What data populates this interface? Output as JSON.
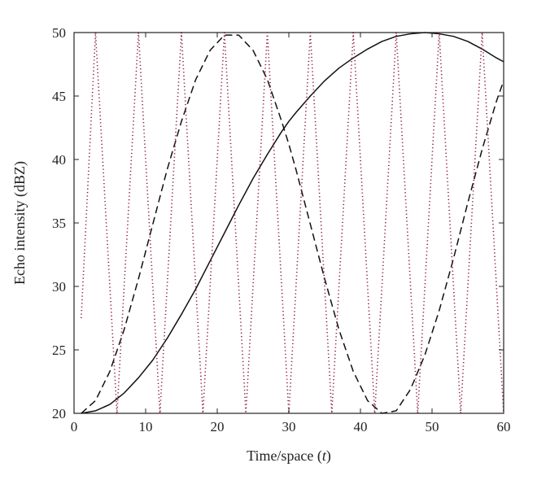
{
  "chart_data": {
    "type": "line",
    "xlabel": "Time/space",
    "xlabel_var": "t",
    "ylabel": "Echo intensity (dBZ)",
    "xlim": [
      0,
      60
    ],
    "ylim": [
      20,
      50
    ],
    "xticks": [
      0,
      10,
      20,
      30,
      40,
      50,
      60
    ],
    "yticks": [
      20,
      25,
      30,
      35,
      40,
      45,
      50
    ],
    "grid": false,
    "legend": "none",
    "series": [
      {
        "style": "solid",
        "color": "#111111",
        "x": [
          1,
          3,
          5,
          7,
          9,
          11,
          13,
          15,
          17,
          19,
          21,
          23,
          25,
          27,
          29,
          30,
          31,
          33,
          35,
          37,
          39,
          41,
          43,
          45,
          47,
          49,
          51,
          53,
          55,
          57,
          59,
          60
        ],
        "y": [
          20.0,
          20.2,
          20.7,
          21.6,
          22.8,
          24.2,
          25.9,
          27.8,
          29.8,
          32.0,
          34.2,
          36.4,
          38.5,
          40.4,
          42.2,
          43.0,
          43.7,
          45.0,
          46.2,
          47.2,
          48.0,
          48.7,
          49.3,
          49.7,
          49.9,
          50.0,
          49.9,
          49.7,
          49.3,
          48.7,
          48.0,
          47.7
        ]
      },
      {
        "style": "dashed",
        "color": "#111111",
        "x": [
          1,
          3,
          5,
          7,
          9,
          11,
          13,
          15,
          17,
          19,
          21,
          23,
          25,
          27,
          29,
          30,
          31,
          33,
          35,
          37,
          39,
          41,
          43,
          45,
          47,
          49,
          51,
          53,
          55,
          57,
          59,
          60
        ],
        "y": [
          20.0,
          21.0,
          23.3,
          26.6,
          30.6,
          34.9,
          39.2,
          43.0,
          46.3,
          48.6,
          49.8,
          49.8,
          48.6,
          46.3,
          43.0,
          41.2,
          39.2,
          34.9,
          30.6,
          26.6,
          23.3,
          21.0,
          20.0,
          20.2,
          21.9,
          24.6,
          28.1,
          32.2,
          36.6,
          40.8,
          44.6,
          46.2
        ]
      },
      {
        "style": "dotted",
        "color": "#8b1a3a",
        "x": [
          1,
          3,
          6,
          9,
          12,
          15,
          18,
          21,
          24,
          27,
          30,
          33,
          36,
          39,
          42,
          45,
          48,
          51,
          54,
          57,
          60
        ],
        "y": [
          27.5,
          50,
          20,
          50,
          20,
          50,
          20,
          50,
          20,
          50,
          20,
          50,
          20,
          50,
          20,
          50,
          20,
          50,
          20,
          50,
          20
        ]
      }
    ]
  }
}
